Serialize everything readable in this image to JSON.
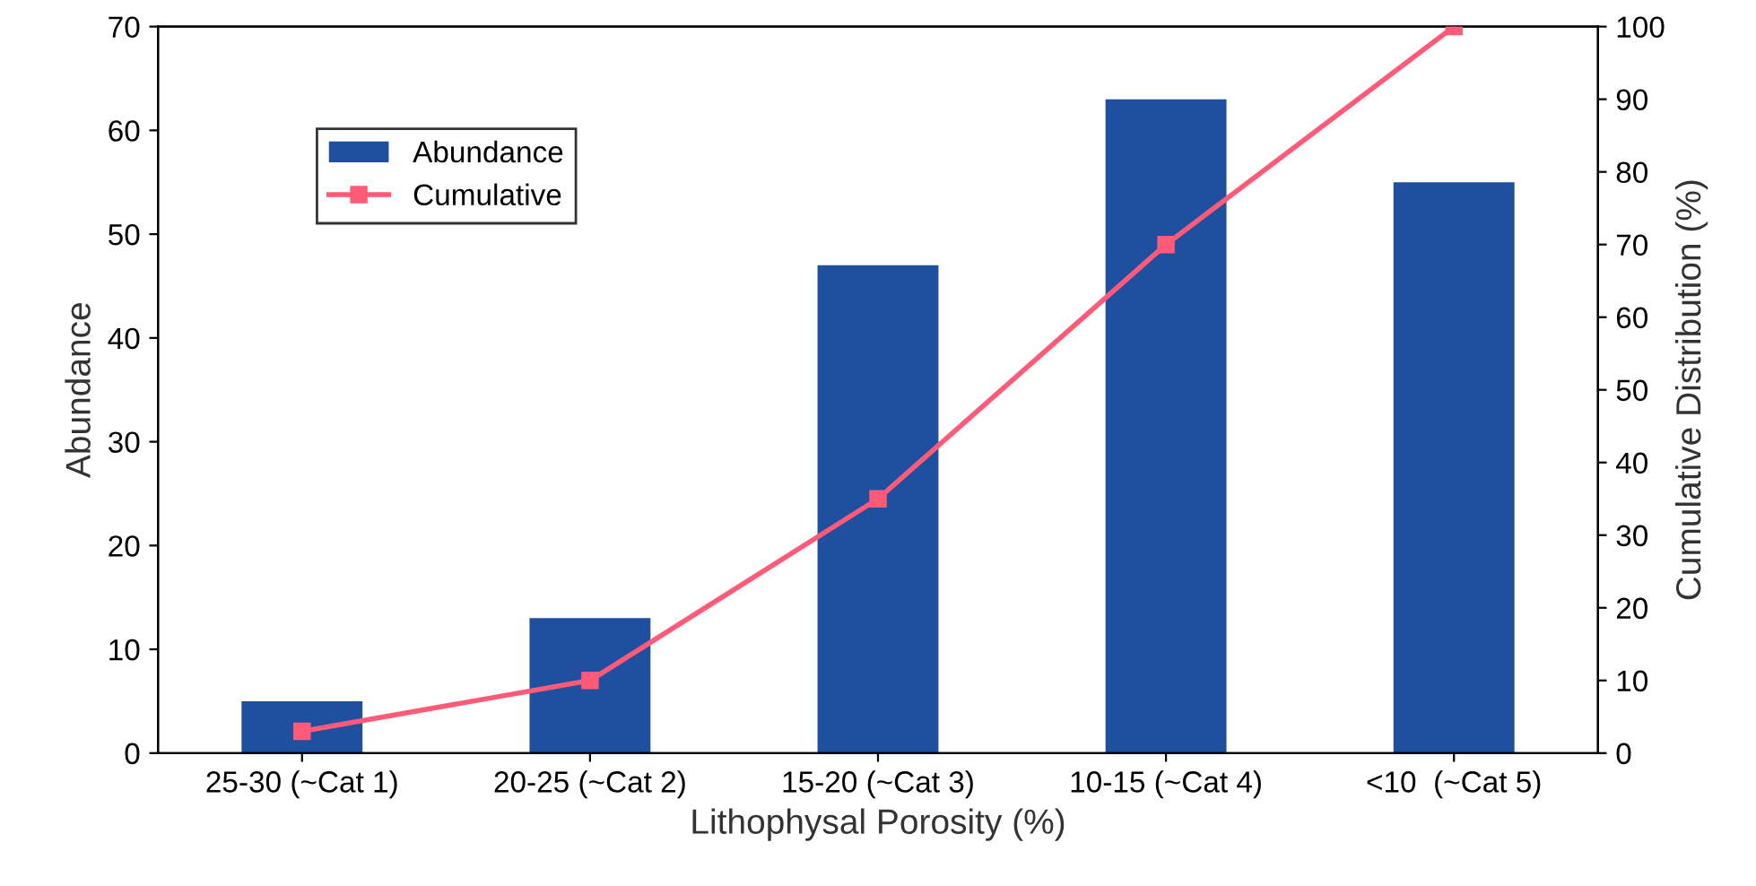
{
  "chart_data": {
    "type": "bar",
    "xlabel": "Lithophysal Porosity (%)",
    "ylabel": "Abundance",
    "y2label": "Cumulative Distribution (%)",
    "categories": [
      "25-30 (~Cat 1)",
      "20-25 (~Cat 2)",
      "15-20 (~Cat 3)",
      "10-15 (~Cat 4)",
      "<10  (~Cat 5)"
    ],
    "series": [
      {
        "name": "Abundance",
        "color": "#1f4f9f",
        "values": [
          5,
          13,
          47,
          63,
          55
        ]
      },
      {
        "name": "Cumulative",
        "type": "line",
        "axis": "y2",
        "color": "#ff5a78",
        "marker": "square",
        "values": [
          3,
          10,
          35,
          70,
          100
        ]
      }
    ],
    "ylim": [
      0,
      70
    ],
    "yticks": [
      0,
      10,
      20,
      30,
      40,
      50,
      60,
      70
    ],
    "y2lim": [
      0,
      100
    ],
    "y2ticks": [
      0,
      10,
      20,
      30,
      40,
      50,
      60,
      70,
      80,
      90,
      100
    ],
    "grid": false,
    "legend": "top left"
  }
}
